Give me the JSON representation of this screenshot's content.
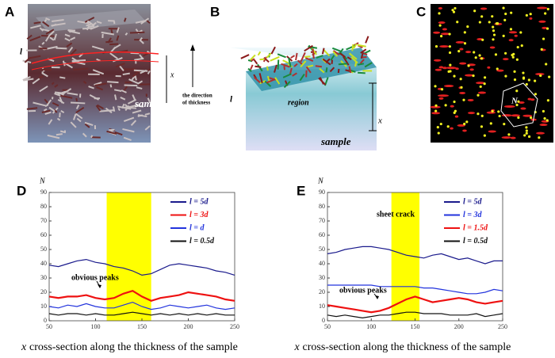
{
  "panel_a": {
    "label": "A",
    "thickness_symbol": "l",
    "depth_symbol": "x",
    "sample": "sample",
    "direction": [
      "the direction",
      "of thickness"
    ]
  },
  "panel_b": {
    "label": "B",
    "thickness_symbol": "l",
    "region": "region",
    "depth_symbol": "x",
    "sample": "sample"
  },
  "panel_c": {
    "label": "C",
    "count_symbol": "N"
  },
  "chart_data": [
    {
      "type": "line",
      "label": "D",
      "y_label": "N",
      "xlim": [
        50,
        250
      ],
      "ylim": [
        0,
        90
      ],
      "xticks": [
        50,
        100,
        150,
        200,
        250
      ],
      "yticks": [
        0,
        10,
        20,
        30,
        40,
        50,
        60,
        70,
        80,
        90
      ],
      "highlight": [
        112,
        160
      ],
      "highlight_color": "#ffff00",
      "x": [
        50,
        60,
        70,
        80,
        90,
        100,
        110,
        120,
        130,
        140,
        150,
        160,
        170,
        180,
        190,
        200,
        210,
        220,
        230,
        240,
        250
      ],
      "series": [
        {
          "name": "l = 5d",
          "color": "#1a1a8c",
          "values": [
            39,
            38,
            40,
            42,
            43,
            41,
            40,
            38,
            37,
            35,
            32,
            33,
            36,
            39,
            40,
            39,
            38,
            37,
            35,
            34,
            32
          ]
        },
        {
          "name": "l = 3d",
          "color": "#ee1111",
          "values": [
            17,
            16,
            17,
            17,
            18,
            16,
            15,
            16,
            19,
            21,
            17,
            14,
            16,
            17,
            18,
            20,
            19,
            18,
            17,
            15,
            14
          ]
        },
        {
          "name": "l = d",
          "color": "#2233dd",
          "values": [
            10,
            9,
            11,
            10,
            12,
            10,
            9,
            9,
            11,
            13,
            10,
            8,
            9,
            11,
            10,
            9,
            10,
            11,
            9,
            8,
            9
          ]
        },
        {
          "name": "l = 0.5d",
          "color": "#111111",
          "values": [
            5,
            4,
            5,
            5,
            4,
            5,
            4,
            4,
            5,
            6,
            5,
            4,
            5,
            4,
            5,
            4,
            5,
            4,
            5,
            4,
            4
          ]
        }
      ],
      "annotations": [
        "obvious peaks"
      ],
      "caption_symbol": "x",
      "caption": "cross-section along the thickness of the sample"
    },
    {
      "type": "line",
      "label": "E",
      "y_label": "N",
      "xlim": [
        50,
        250
      ],
      "ylim": [
        0,
        90
      ],
      "xticks": [
        50,
        100,
        150,
        200,
        250
      ],
      "yticks": [
        0,
        10,
        20,
        30,
        40,
        50,
        60,
        70,
        80,
        90
      ],
      "highlight": [
        123,
        155
      ],
      "highlight_color": "#ffff00",
      "x": [
        50,
        60,
        70,
        80,
        90,
        100,
        110,
        120,
        130,
        140,
        150,
        160,
        170,
        180,
        190,
        200,
        210,
        220,
        230,
        240,
        250
      ],
      "series": [
        {
          "name": "l = 5d",
          "color": "#1a1a8c",
          "values": [
            47,
            48,
            50,
            51,
            52,
            52,
            51,
            50,
            48,
            46,
            45,
            44,
            46,
            47,
            45,
            43,
            44,
            42,
            40,
            42,
            42
          ]
        },
        {
          "name": "l = 3d",
          "color": "#2233dd",
          "values": [
            25,
            25,
            25,
            25,
            25,
            25,
            24,
            24,
            24,
            24,
            24,
            23,
            23,
            22,
            21,
            20,
            19,
            19,
            20,
            22,
            21
          ]
        },
        {
          "name": "l = 1.5d",
          "color": "#ee1111",
          "values": [
            11,
            10,
            9,
            8,
            7,
            6,
            7,
            9,
            12,
            15,
            17,
            15,
            13,
            14,
            15,
            16,
            15,
            13,
            12,
            13,
            14
          ]
        },
        {
          "name": "l = 0.5d",
          "color": "#111111",
          "values": [
            4,
            3,
            4,
            3,
            2,
            3,
            4,
            4,
            5,
            6,
            6,
            5,
            5,
            5,
            4,
            4,
            4,
            5,
            3,
            4,
            5
          ]
        }
      ],
      "annotations": [
        "sheet crack",
        "obvious peaks"
      ],
      "caption_symbol": "x",
      "caption": "cross-section along the thickness of the sample"
    }
  ]
}
